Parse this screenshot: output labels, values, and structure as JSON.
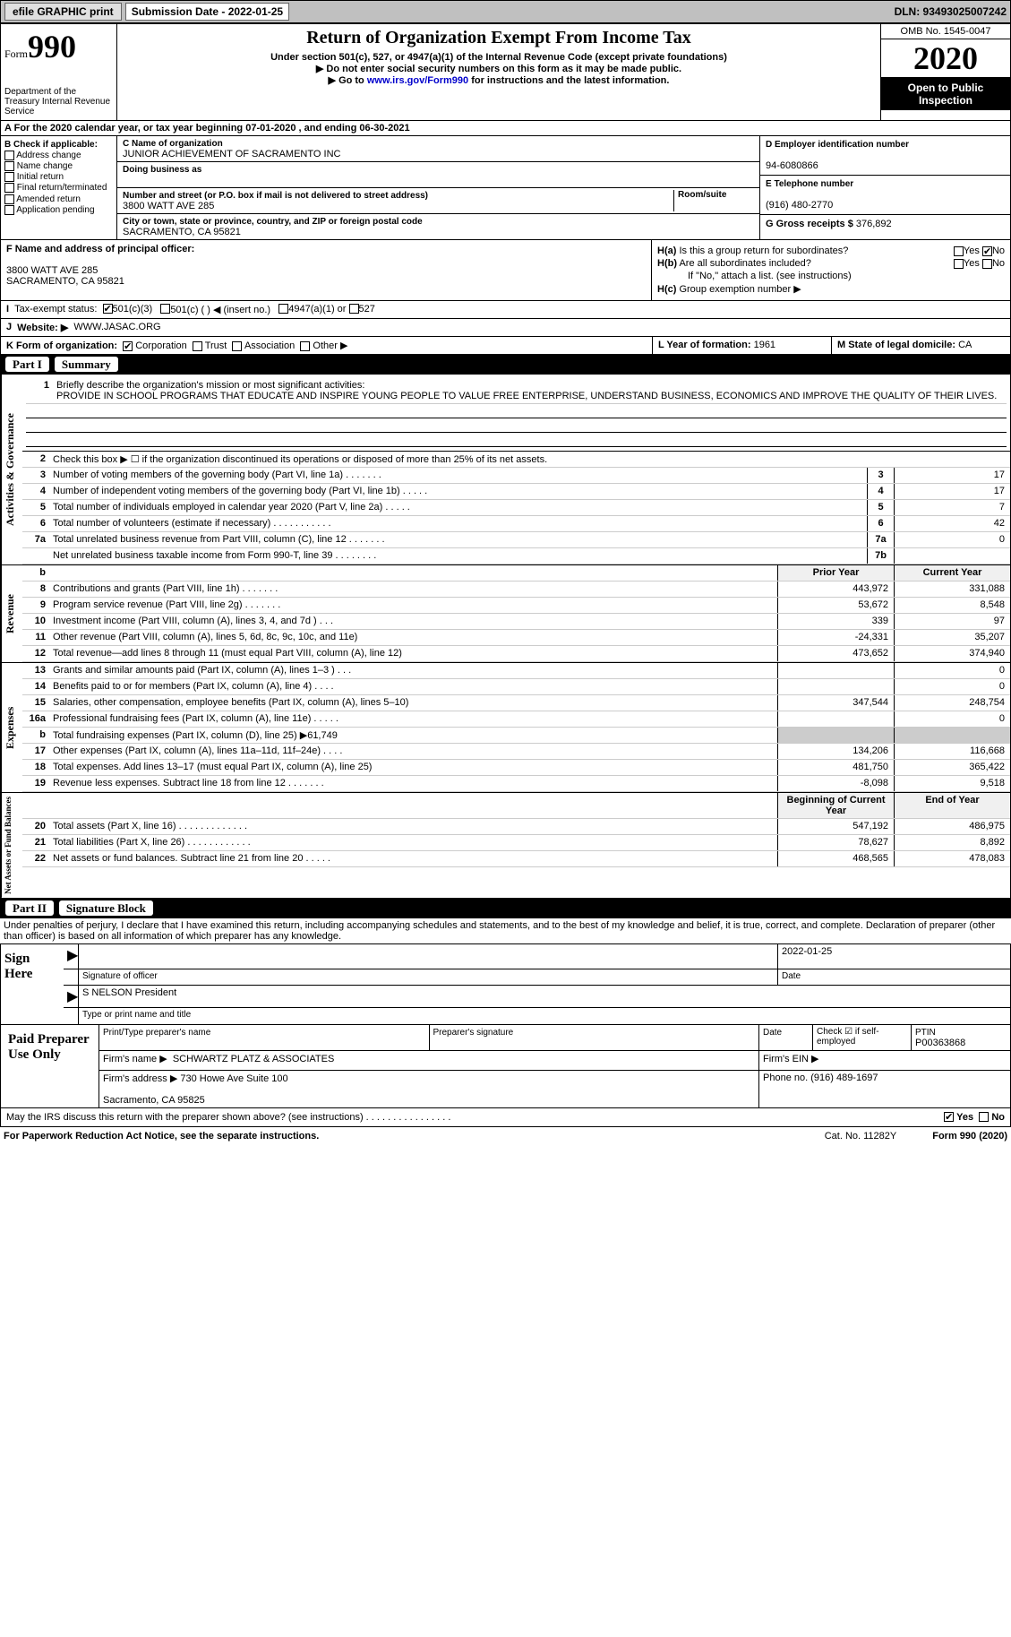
{
  "topbar": {
    "efile": "efile GRAPHIC print",
    "subdate_label": "Submission Date - ",
    "subdate": "2022-01-25",
    "dln": "DLN: 93493025007242"
  },
  "header": {
    "form_label": "Form",
    "form_no": "990",
    "dept": "Department of the Treasury\nInternal Revenue Service",
    "title": "Return of Organization Exempt From Income Tax",
    "sub1": "Under section 501(c), 527, or 4947(a)(1) of the Internal Revenue Code (except private foundations)",
    "sub2": "Do not enter social security numbers on this form as it may be made public.",
    "sub3_pre": "Go to ",
    "sub3_link": "www.irs.gov/Form990",
    "sub3_post": " for instructions and the latest information.",
    "omb": "OMB No. 1545-0047",
    "year": "2020",
    "pub": "Open to Public Inspection"
  },
  "period": {
    "text_a": "For the 2020 calendar year, or tax year beginning ",
    "begin": "07-01-2020",
    "text_b": " , and ending ",
    "end": "06-30-2021"
  },
  "B": {
    "label": "B Check if applicable:",
    "opts": [
      "Address change",
      "Name change",
      "Initial return",
      "Final return/terminated",
      "Amended return",
      "Application pending"
    ]
  },
  "C": {
    "name_label": "C Name of organization",
    "name": "JUNIOR ACHIEVEMENT OF SACRAMENTO INC",
    "dba_label": "Doing business as",
    "dba": "",
    "addr_label": "Number and street (or P.O. box if mail is not delivered to street address)",
    "room_label": "Room/suite",
    "addr": "3800 WATT AVE 285",
    "city_label": "City or town, state or province, country, and ZIP or foreign postal code",
    "city": "SACRAMENTO, CA  95821"
  },
  "D": {
    "label": "D Employer identification number",
    "val": "94-6080866"
  },
  "E": {
    "label": "E Telephone number",
    "val": "(916) 480-2770"
  },
  "G": {
    "label": "G Gross receipts $",
    "val": "376,892"
  },
  "F": {
    "label": "F  Name and address of principal officer:",
    "addr1": "3800 WATT AVE 285",
    "addr2": "SACRAMENTO, CA  95821"
  },
  "H": {
    "a": "Is this a group return for subordinates?",
    "b": "Are all subordinates included?",
    "b_note": "If \"No,\" attach a list. (see instructions)",
    "c": "Group exemption number ▶",
    "yes": "Yes",
    "no": "No"
  },
  "I": {
    "label": "Tax-exempt status:",
    "opt1": "501(c)(3)",
    "opt2": "501(c) (  ) ◀ (insert no.)",
    "opt3": "4947(a)(1) or",
    "opt4": "527"
  },
  "J": {
    "label": "Website: ▶",
    "val": "WWW.JASAC.ORG"
  },
  "K": {
    "label": "K Form of organization:",
    "opts": [
      "Corporation",
      "Trust",
      "Association",
      "Other ▶"
    ]
  },
  "L": {
    "label": "L Year of formation:",
    "val": "1961"
  },
  "M": {
    "label": "M State of legal domicile:",
    "val": "CA"
  },
  "part1": {
    "hdr": "Summary",
    "mission_label": "Briefly describe the organization's mission or most significant activities:",
    "mission": "PROVIDE IN SCHOOL PROGRAMS THAT EDUCATE AND INSPIRE YOUNG PEOPLE TO VALUE FREE ENTERPRISE, UNDERSTAND BUSINESS, ECONOMICS AND IMPROVE THE QUALITY OF THEIR LIVES.",
    "line2": "Check this box ▶ ☐  if the organization discontinued its operations or disposed of more than 25% of its net assets.",
    "gov_lines": [
      {
        "n": "3",
        "d": "Number of voting members of the governing body (Part VI, line 1a)   .    .    .    .    .    .    .",
        "b": "3",
        "v": "17"
      },
      {
        "n": "4",
        "d": "Number of independent voting members of the governing body (Part VI, line 1b)   .    .    .    .    .",
        "b": "4",
        "v": "17"
      },
      {
        "n": "5",
        "d": "Total number of individuals employed in calendar year 2020 (Part V, line 2a)   .    .    .    .    .",
        "b": "5",
        "v": "7"
      },
      {
        "n": "6",
        "d": "Total number of volunteers (estimate if necessary)   .    .    .    .    .    .    .    .    .    .    .",
        "b": "6",
        "v": "42"
      },
      {
        "n": "7a",
        "d": "Total unrelated business revenue from Part VIII, column (C), line 12   .    .    .    .    .    .    .",
        "b": "7a",
        "v": "0"
      },
      {
        "n": "",
        "d": "Net unrelated business taxable income from Form 990-T, line 39   .    .    .    .    .    .    .    .",
        "b": "7b",
        "v": ""
      }
    ],
    "col_prior": "Prior Year",
    "col_curr": "Current Year",
    "rev_lines": [
      {
        "n": "8",
        "d": "Contributions and grants (Part VIII, line 1h)   .    .    .    .    .    .    .",
        "p": "443,972",
        "c": "331,088"
      },
      {
        "n": "9",
        "d": "Program service revenue (Part VIII, line 2g)   .    .    .    .    .    .    .",
        "p": "53,672",
        "c": "8,548"
      },
      {
        "n": "10",
        "d": "Investment income (Part VIII, column (A), lines 3, 4, and 7d )   .    .    .",
        "p": "339",
        "c": "97"
      },
      {
        "n": "11",
        "d": "Other revenue (Part VIII, column (A), lines 5, 6d, 8c, 9c, 10c, and 11e)",
        "p": "-24,331",
        "c": "35,207"
      },
      {
        "n": "12",
        "d": "Total revenue—add lines 8 through 11 (must equal Part VIII, column (A), line 12)",
        "p": "473,652",
        "c": "374,940"
      }
    ],
    "exp_lines": [
      {
        "n": "13",
        "d": "Grants and similar amounts paid (Part IX, column (A), lines 1–3 )   .    .    .",
        "p": "",
        "c": "0"
      },
      {
        "n": "14",
        "d": "Benefits paid to or for members (Part IX, column (A), line 4)   .    .    .    .",
        "p": "",
        "c": "0"
      },
      {
        "n": "15",
        "d": "Salaries, other compensation, employee benefits (Part IX, column (A), lines 5–10)",
        "p": "347,544",
        "c": "248,754"
      },
      {
        "n": "16a",
        "d": "Professional fundraising fees (Part IX, column (A), line 11e)   .    .    .    .    .",
        "p": "",
        "c": "0"
      },
      {
        "n": "b",
        "d": "Total fundraising expenses (Part IX, column (D), line 25) ▶61,749",
        "p": "shade",
        "c": "shade"
      },
      {
        "n": "17",
        "d": "Other expenses (Part IX, column (A), lines 11a–11d, 11f–24e)   .    .    .    .",
        "p": "134,206",
        "c": "116,668"
      },
      {
        "n": "18",
        "d": "Total expenses. Add lines 13–17 (must equal Part IX, column (A), line 25)",
        "p": "481,750",
        "c": "365,422"
      },
      {
        "n": "19",
        "d": "Revenue less expenses. Subtract line 18 from line 12   .    .    .    .    .    .    .",
        "p": "-8,098",
        "c": "9,518"
      }
    ],
    "col_begin": "Beginning of Current Year",
    "col_end": "End of Year",
    "na_lines": [
      {
        "n": "20",
        "d": "Total assets (Part X, line 16)   .    .    .    .    .    .    .    .    .    .    .    .    .",
        "p": "547,192",
        "c": "486,975"
      },
      {
        "n": "21",
        "d": "Total liabilities (Part X, line 26)   .    .    .    .    .    .    .    .    .    .    .    .",
        "p": "78,627",
        "c": "8,892"
      },
      {
        "n": "22",
        "d": "Net assets or fund balances. Subtract line 21 from line 20   .    .    .    .    .",
        "p": "468,565",
        "c": "478,083"
      }
    ],
    "side_gov": "Activities & Governance",
    "side_rev": "Revenue",
    "side_exp": "Expenses",
    "side_na": "Net Assets or Fund Balances"
  },
  "part2": {
    "hdr": "Signature Block",
    "penalty": "Under penalties of perjury, I declare that I have examined this return, including accompanying schedules and statements, and to the best of my knowledge and belief, it is true, correct, and complete. Declaration of preparer (other than officer) is based on all information of which preparer has any knowledge.",
    "sign_here": "Sign Here",
    "sig_officer": "Signature of officer",
    "sig_date": "Date",
    "sig_date_val": "2022-01-25",
    "officer_name": "S NELSON  President",
    "officer_type": "Type or print name and title",
    "paid": "Paid Preparer Use Only",
    "p_name_l": "Print/Type preparer's name",
    "p_sig_l": "Preparer's signature",
    "p_date_l": "Date",
    "p_check_l": "Check ☑ if self-employed",
    "ptin_l": "PTIN",
    "ptin": "P00363868",
    "firm_name_l": "Firm's name    ▶",
    "firm_name": "SCHWARTZ PLATZ & ASSOCIATES",
    "firm_ein_l": "Firm's EIN ▶",
    "firm_addr_l": "Firm's address ▶",
    "firm_addr": "730 Howe Ave Suite 100\n\nSacramento, CA  95825",
    "phone_l": "Phone no.",
    "phone": "(916) 489-1697",
    "discuss": "May the IRS discuss this return with the preparer shown above? (see instructions)   .    .    .    .    .    .    .    .    .    .    .    .    .    .    .    .",
    "yes": "Yes",
    "no": "No"
  },
  "footer": {
    "pra": "For Paperwork Reduction Act Notice, see the separate instructions.",
    "cat": "Cat. No. 11282Y",
    "form": "Form 990 (2020)"
  }
}
